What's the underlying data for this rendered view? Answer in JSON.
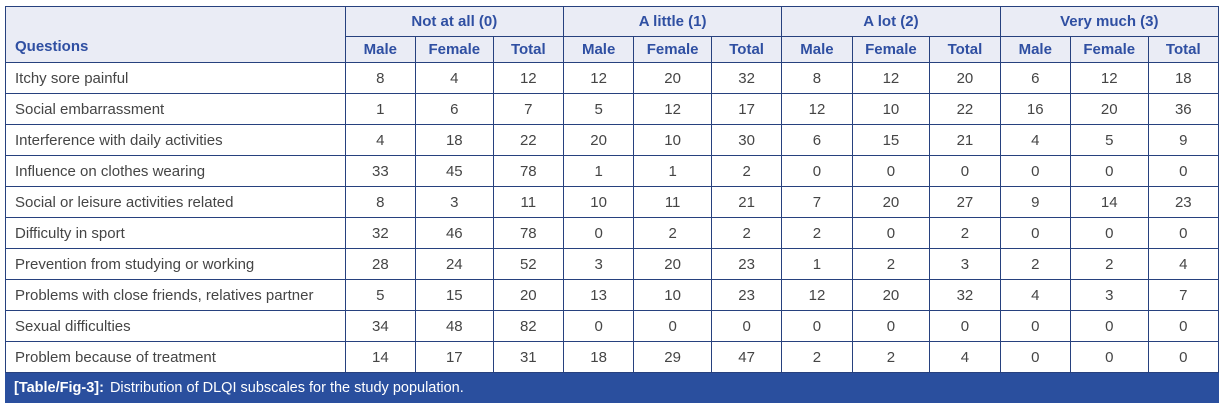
{
  "table": {
    "questions_header": "Questions",
    "groups": [
      {
        "label": "Not at all (0)"
      },
      {
        "label": "A little (1)"
      },
      {
        "label": "A lot (2)"
      },
      {
        "label": "Very much (3)"
      }
    ],
    "sub_headers": [
      "Male",
      "Female",
      "Total"
    ],
    "rows": [
      {
        "question": "Itchy sore painful",
        "values": [
          8,
          4,
          12,
          12,
          20,
          32,
          8,
          12,
          20,
          6,
          12,
          18
        ]
      },
      {
        "question": "Social embarrassment",
        "values": [
          1,
          6,
          7,
          5,
          12,
          17,
          12,
          10,
          22,
          16,
          20,
          36
        ]
      },
      {
        "question": "Interference with daily activities",
        "values": [
          4,
          18,
          22,
          20,
          10,
          30,
          6,
          15,
          21,
          4,
          5,
          9
        ]
      },
      {
        "question": "Influence on clothes wearing",
        "values": [
          33,
          45,
          78,
          1,
          1,
          2,
          0,
          0,
          0,
          0,
          0,
          0
        ]
      },
      {
        "question": "Social or leisure activities related",
        "values": [
          8,
          3,
          11,
          10,
          11,
          21,
          7,
          20,
          27,
          9,
          14,
          23
        ]
      },
      {
        "question": "Difficulty in sport",
        "values": [
          32,
          46,
          78,
          0,
          2,
          2,
          2,
          0,
          2,
          0,
          0,
          0
        ]
      },
      {
        "question": "Prevention from studying or working",
        "values": [
          28,
          24,
          52,
          3,
          20,
          23,
          1,
          2,
          3,
          2,
          2,
          4
        ]
      },
      {
        "question": "Problems with close friends, relatives partner",
        "values": [
          5,
          15,
          20,
          13,
          10,
          23,
          12,
          20,
          32,
          4,
          3,
          7
        ]
      },
      {
        "question": "Sexual difficulties",
        "values": [
          34,
          48,
          82,
          0,
          0,
          0,
          0,
          0,
          0,
          0,
          0,
          0
        ]
      },
      {
        "question": "Problem because of treatment",
        "values": [
          14,
          17,
          31,
          18,
          29,
          47,
          2,
          2,
          4,
          0,
          0,
          0
        ]
      }
    ]
  },
  "caption": {
    "label": "[Table/Fig-3]:",
    "text": "Distribution of DLQI subscales for the study population."
  },
  "colors": {
    "border": "#27417e",
    "header_bg": "#eaecf5",
    "header_text": "#2f4fa2",
    "body_text": "#454545",
    "caption_bg": "#2a4f9e",
    "caption_text": "#ffffff"
  },
  "chart_data": {
    "type": "table",
    "title": "[Table/Fig-3]: Distribution of DLQI subscales for the study population.",
    "column_groups": [
      "Not at all (0)",
      "A little (1)",
      "A lot (2)",
      "Very much (3)"
    ],
    "sub_columns": [
      "Male",
      "Female",
      "Total"
    ],
    "row_label_header": "Questions",
    "rows": [
      [
        "Itchy sore painful",
        8,
        4,
        12,
        12,
        20,
        32,
        8,
        12,
        20,
        6,
        12,
        18
      ],
      [
        "Social embarrassment",
        1,
        6,
        7,
        5,
        12,
        17,
        12,
        10,
        22,
        16,
        20,
        36
      ],
      [
        "Interference with daily activities",
        4,
        18,
        22,
        20,
        10,
        30,
        6,
        15,
        21,
        4,
        5,
        9
      ],
      [
        "Influence on clothes wearing",
        33,
        45,
        78,
        1,
        1,
        2,
        0,
        0,
        0,
        0,
        0,
        0
      ],
      [
        "Social or leisure activities related",
        8,
        3,
        11,
        10,
        11,
        21,
        7,
        20,
        27,
        9,
        14,
        23
      ],
      [
        "Difficulty in sport",
        32,
        46,
        78,
        0,
        2,
        2,
        2,
        0,
        2,
        0,
        0,
        0
      ],
      [
        "Prevention from studying or working",
        28,
        24,
        52,
        3,
        20,
        23,
        1,
        2,
        3,
        2,
        2,
        4
      ],
      [
        "Problems with close friends, relatives partner",
        5,
        15,
        20,
        13,
        10,
        23,
        12,
        20,
        32,
        4,
        3,
        7
      ],
      [
        "Sexual difficulties",
        34,
        48,
        82,
        0,
        0,
        0,
        0,
        0,
        0,
        0,
        0,
        0
      ],
      [
        "Problem because of treatment",
        14,
        17,
        31,
        18,
        29,
        47,
        2,
        2,
        4,
        0,
        0,
        0
      ]
    ]
  }
}
